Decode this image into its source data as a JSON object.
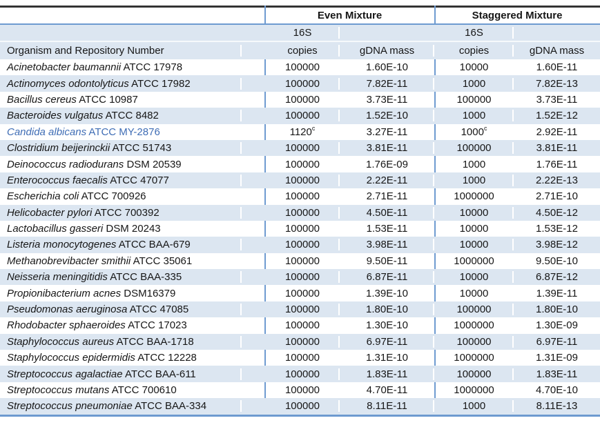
{
  "colors": {
    "stripe": "#dce6f1",
    "blue-border": "#6d9ad0",
    "dark-border": "#333333",
    "accent-blue": "#3f6db5"
  },
  "table": {
    "header": {
      "even_label": "Even Mixture",
      "staggered_label": "Staggered Mixture",
      "copies_line1": "16S",
      "copies_line2": "copies",
      "mass_label": "gDNA mass",
      "organism_label": "Organism and Repository Number"
    },
    "rows": [
      {
        "genus_species": "Acinetobacter baumannii",
        "repository": "ATCC 17978",
        "even_16s_copies": "100000",
        "even_gdna_mass": "1.60E-10",
        "stag_16s_copies": "10000",
        "stag_gdna_mass": "1.60E-11",
        "highlighted": false
      },
      {
        "genus_species": "Actinomyces odontolyticus",
        "repository": "ATCC 17982",
        "even_16s_copies": "100000",
        "even_gdna_mass": "7.82E-11",
        "stag_16s_copies": "1000",
        "stag_gdna_mass": "7.82E-13",
        "highlighted": false
      },
      {
        "genus_species": "Bacillus cereus",
        "repository": "ATCC 10987",
        "even_16s_copies": "100000",
        "even_gdna_mass": "3.73E-11",
        "stag_16s_copies": "100000",
        "stag_gdna_mass": "3.73E-11",
        "highlighted": false
      },
      {
        "genus_species": "Bacteroides vulgatus",
        "repository": "ATCC 8482",
        "even_16s_copies": "100000",
        "even_gdna_mass": "1.52E-10",
        "stag_16s_copies": "1000",
        "stag_gdna_mass": "1.52E-12",
        "highlighted": false
      },
      {
        "genus_species": "Candida albicans",
        "repository": "ATCC MY-2876",
        "even_16s_copies": "1120",
        "even_16s_sup": "c",
        "even_gdna_mass": "3.27E-11",
        "stag_16s_copies": "1000",
        "stag_16s_sup": "c",
        "stag_gdna_mass": "2.92E-11",
        "highlighted": true
      },
      {
        "genus_species": "Clostridium beijerinckii",
        "repository": "ATCC 51743",
        "even_16s_copies": "100000",
        "even_gdna_mass": "3.81E-11",
        "stag_16s_copies": "100000",
        "stag_gdna_mass": "3.81E-11",
        "highlighted": false
      },
      {
        "genus_species": "Deinococcus radiodurans",
        "repository": "DSM 20539",
        "even_16s_copies": "100000",
        "even_gdna_mass": "1.76E-09",
        "stag_16s_copies": "1000",
        "stag_gdna_mass": "1.76E-11",
        "highlighted": false
      },
      {
        "genus_species": "Enterococcus faecalis",
        "repository": "ATCC 47077",
        "even_16s_copies": "100000",
        "even_gdna_mass": "2.22E-11",
        "stag_16s_copies": "1000",
        "stag_gdna_mass": "2.22E-13",
        "highlighted": false
      },
      {
        "genus_species": "Escherichia coli",
        "repository": "ATCC 700926",
        "even_16s_copies": "100000",
        "even_gdna_mass": "2.71E-11",
        "stag_16s_copies": "1000000",
        "stag_gdna_mass": "2.71E-10",
        "highlighted": false
      },
      {
        "genus_species": "Helicobacter pylori",
        "repository": "ATCC 700392",
        "even_16s_copies": "100000",
        "even_gdna_mass": "4.50E-11",
        "stag_16s_copies": "10000",
        "stag_gdna_mass": "4.50E-12",
        "highlighted": false
      },
      {
        "genus_species": "Lactobacillus gasseri",
        "repository": "DSM 20243",
        "even_16s_copies": "100000",
        "even_gdna_mass": "1.53E-11",
        "stag_16s_copies": "10000",
        "stag_gdna_mass": "1.53E-12",
        "highlighted": false
      },
      {
        "genus_species": "Listeria monocytogenes",
        "repository": "ATCC BAA-679",
        "even_16s_copies": "100000",
        "even_gdna_mass": "3.98E-11",
        "stag_16s_copies": "10000",
        "stag_gdna_mass": "3.98E-12",
        "highlighted": false
      },
      {
        "genus_species": "Methanobrevibacter smithii",
        "repository": "ATCC 35061",
        "even_16s_copies": "100000",
        "even_gdna_mass": "9.50E-11",
        "stag_16s_copies": "1000000",
        "stag_gdna_mass": "9.50E-10",
        "highlighted": false
      },
      {
        "genus_species": "Neisseria meningitidis",
        "repository": "ATCC BAA-335",
        "even_16s_copies": "100000",
        "even_gdna_mass": "6.87E-11",
        "stag_16s_copies": "10000",
        "stag_gdna_mass": "6.87E-12",
        "highlighted": false
      },
      {
        "genus_species": "Propionibacterium acnes",
        "repository": "DSM16379",
        "even_16s_copies": "100000",
        "even_gdna_mass": "1.39E-10",
        "stag_16s_copies": "10000",
        "stag_gdna_mass": "1.39E-11",
        "highlighted": false
      },
      {
        "genus_species": "Pseudomonas aeruginosa",
        "repository": "ATCC 47085",
        "even_16s_copies": "100000",
        "even_gdna_mass": "1.80E-10",
        "stag_16s_copies": "100000",
        "stag_gdna_mass": "1.80E-10",
        "highlighted": false
      },
      {
        "genus_species": "Rhodobacter sphaeroides",
        "repository": "ATCC 17023",
        "even_16s_copies": "100000",
        "even_gdna_mass": "1.30E-10",
        "stag_16s_copies": "1000000",
        "stag_gdna_mass": "1.30E-09",
        "highlighted": false
      },
      {
        "genus_species": "Staphylococcus aureus",
        "repository": "ATCC BAA-1718",
        "even_16s_copies": "100000",
        "even_gdna_mass": "6.97E-11",
        "stag_16s_copies": "100000",
        "stag_gdna_mass": "6.97E-11",
        "highlighted": false
      },
      {
        "genus_species": "Staphylococcus epidermidis",
        "repository": "ATCC 12228",
        "even_16s_copies": "100000",
        "even_gdna_mass": "1.31E-10",
        "stag_16s_copies": "1000000",
        "stag_gdna_mass": "1.31E-09",
        "highlighted": false
      },
      {
        "genus_species": "Streptococcus agalactiae",
        "repository": "ATCC BAA-611",
        "even_16s_copies": "100000",
        "even_gdna_mass": "1.83E-11",
        "stag_16s_copies": "100000",
        "stag_gdna_mass": "1.83E-11",
        "highlighted": false
      },
      {
        "genus_species": "Streptococcus mutans",
        "repository": "ATCC 700610",
        "even_16s_copies": "100000",
        "even_gdna_mass": "4.70E-11",
        "stag_16s_copies": "1000000",
        "stag_gdna_mass": "4.70E-10",
        "highlighted": false
      },
      {
        "genus_species": "Streptococcus pneumoniae",
        "repository": "ATCC BAA-334",
        "even_16s_copies": "100000",
        "even_gdna_mass": "8.11E-11",
        "stag_16s_copies": "1000",
        "stag_gdna_mass": "8.11E-13",
        "highlighted": false
      }
    ]
  },
  "chart_data": {
    "type": "table",
    "columns": [
      "Organism and Repository Number",
      "Even Mixture 16S copies",
      "Even Mixture gDNA mass",
      "Staggered Mixture 16S copies",
      "Staggered Mixture gDNA mass"
    ],
    "rows": [
      [
        "Acinetobacter baumannii ATCC 17978",
        "100000",
        "1.60E-10",
        "10000",
        "1.60E-11"
      ],
      [
        "Actinomyces odontolyticus ATCC 17982",
        "100000",
        "7.82E-11",
        "1000",
        "7.82E-13"
      ],
      [
        "Bacillus cereus ATCC 10987",
        "100000",
        "3.73E-11",
        "100000",
        "3.73E-11"
      ],
      [
        "Bacteroides vulgatus ATCC 8482",
        "100000",
        "1.52E-10",
        "1000",
        "1.52E-12"
      ],
      [
        "Candida albicans ATCC MY-2876",
        "1120^c",
        "3.27E-11",
        "1000^c",
        "2.92E-11"
      ],
      [
        "Clostridium beijerinckii ATCC 51743",
        "100000",
        "3.81E-11",
        "100000",
        "3.81E-11"
      ],
      [
        "Deinococcus radiodurans DSM 20539",
        "100000",
        "1.76E-09",
        "1000",
        "1.76E-11"
      ],
      [
        "Enterococcus faecalis ATCC 47077",
        "100000",
        "2.22E-11",
        "1000",
        "2.22E-13"
      ],
      [
        "Escherichia coli ATCC 700926",
        "100000",
        "2.71E-11",
        "1000000",
        "2.71E-10"
      ],
      [
        "Helicobacter pylori ATCC 700392",
        "100000",
        "4.50E-11",
        "10000",
        "4.50E-12"
      ],
      [
        "Lactobacillus gasseri DSM 20243",
        "100000",
        "1.53E-11",
        "10000",
        "1.53E-12"
      ],
      [
        "Listeria monocytogenes ATCC BAA-679",
        "100000",
        "3.98E-11",
        "10000",
        "3.98E-12"
      ],
      [
        "Methanobrevibacter smithii ATCC 35061",
        "100000",
        "9.50E-11",
        "1000000",
        "9.50E-10"
      ],
      [
        "Neisseria meningitidis ATCC BAA-335",
        "100000",
        "6.87E-11",
        "10000",
        "6.87E-12"
      ],
      [
        "Propionibacterium acnes DSM16379",
        "100000",
        "1.39E-10",
        "10000",
        "1.39E-11"
      ],
      [
        "Pseudomonas aeruginosa ATCC 47085",
        "100000",
        "1.80E-10",
        "100000",
        "1.80E-10"
      ],
      [
        "Rhodobacter sphaeroides ATCC 17023",
        "100000",
        "1.30E-10",
        "1000000",
        "1.30E-09"
      ],
      [
        "Staphylococcus aureus ATCC BAA-1718",
        "100000",
        "6.97E-11",
        "100000",
        "6.97E-11"
      ],
      [
        "Staphylococcus epidermidis ATCC 12228",
        "100000",
        "1.31E-10",
        "1000000",
        "1.31E-09"
      ],
      [
        "Streptococcus agalactiae ATCC BAA-611",
        "100000",
        "1.83E-11",
        "100000",
        "1.83E-11"
      ],
      [
        "Streptococcus mutans ATCC 700610",
        "100000",
        "4.70E-11",
        "1000000",
        "4.70E-10"
      ],
      [
        "Streptococcus pneumoniae ATCC BAA-334",
        "100000",
        "8.11E-11",
        "1000",
        "8.11E-13"
      ]
    ]
  }
}
